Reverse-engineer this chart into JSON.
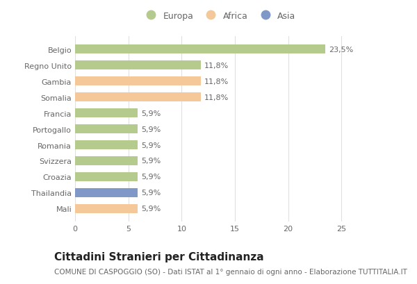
{
  "categories": [
    "Belgio",
    "Regno Unito",
    "Gambia",
    "Somalia",
    "Francia",
    "Portogallo",
    "Romania",
    "Svizzera",
    "Croazia",
    "Thailandia",
    "Mali"
  ],
  "values": [
    23.5,
    11.8,
    11.8,
    11.8,
    5.9,
    5.9,
    5.9,
    5.9,
    5.9,
    5.9,
    5.9
  ],
  "labels": [
    "23,5%",
    "11,8%",
    "11,8%",
    "11,8%",
    "5,9%",
    "5,9%",
    "5,9%",
    "5,9%",
    "5,9%",
    "5,9%",
    "5,9%"
  ],
  "bar_colors": [
    "#b5ca8d",
    "#b5ca8d",
    "#f5c89a",
    "#f5c89a",
    "#b5ca8d",
    "#b5ca8d",
    "#b5ca8d",
    "#b5ca8d",
    "#b5ca8d",
    "#8098c8",
    "#f5c89a"
  ],
  "legend_labels": [
    "Europa",
    "Africa",
    "Asia"
  ],
  "legend_colors": [
    "#b5ca8d",
    "#f5c89a",
    "#8098c8"
  ],
  "xlim": [
    0,
    27
  ],
  "xticks": [
    0,
    5,
    10,
    15,
    20,
    25
  ],
  "title": "Cittadini Stranieri per Cittadinanza",
  "subtitle": "COMUNE DI CASPOGGIO (SO) - Dati ISTAT al 1° gennaio di ogni anno - Elaborazione TUTTITALIA.IT",
  "title_fontsize": 11,
  "subtitle_fontsize": 7.5,
  "label_fontsize": 8,
  "tick_fontsize": 8,
  "legend_fontsize": 9,
  "bar_height": 0.55,
  "background_color": "#ffffff",
  "grid_color": "#e0e0e0",
  "text_color": "#666666"
}
